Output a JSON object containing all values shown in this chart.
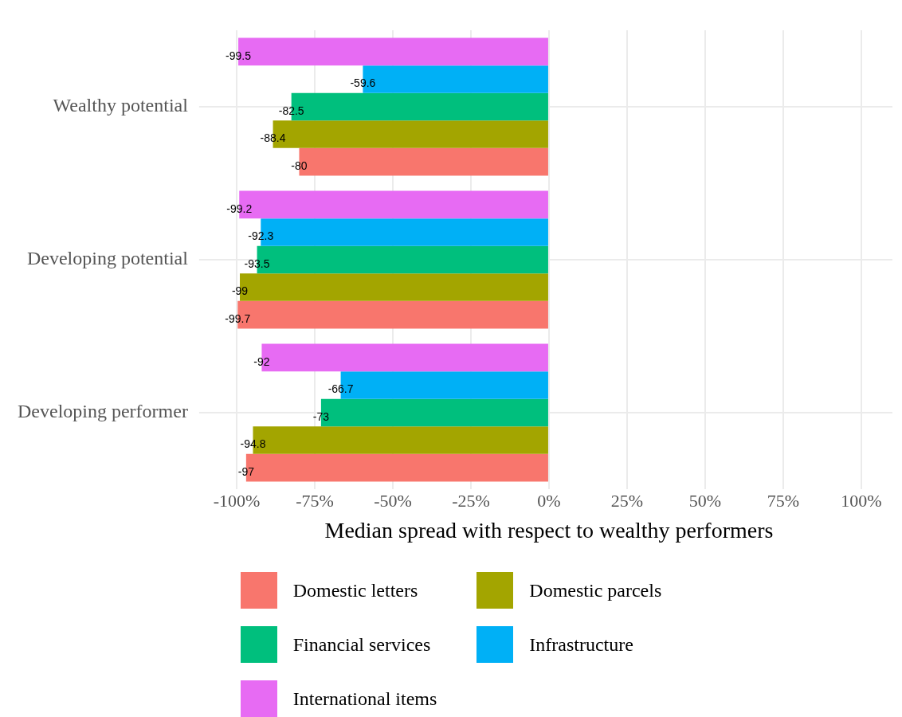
{
  "chart_data": {
    "type": "bar",
    "orientation": "horizontal",
    "categories": [
      "Wealthy potential",
      "Developing potential",
      "Developing performer"
    ],
    "series": [
      {
        "name": "Domestic letters",
        "color": "#f8766d",
        "values": [
          -80,
          -99.7,
          -97
        ]
      },
      {
        "name": "Domestic parcels",
        "color": "#a3a500",
        "values": [
          -88.4,
          -99,
          -94.8
        ]
      },
      {
        "name": "Financial services",
        "color": "#00bf7d",
        "values": [
          -82.5,
          -93.5,
          -73
        ]
      },
      {
        "name": "Infrastructure",
        "color": "#00b0f6",
        "values": [
          -59.6,
          -92.3,
          -66.7
        ]
      },
      {
        "name": "International items",
        "color": "#e76bf3",
        "values": [
          -99.5,
          -99.2,
          -92
        ]
      }
    ],
    "xlim": [
      -110,
      110
    ],
    "xticks": [
      {
        "value": -100,
        "label": "-100%"
      },
      {
        "value": -75,
        "label": "-75%"
      },
      {
        "value": -50,
        "label": "-50%"
      },
      {
        "value": -25,
        "label": "-25%"
      },
      {
        "value": 0,
        "label": "0%"
      },
      {
        "value": 25,
        "label": "25%"
      },
      {
        "value": 50,
        "label": "50%"
      },
      {
        "value": 75,
        "label": "75%"
      },
      {
        "value": 100,
        "label": "100%"
      }
    ],
    "xlabel": "Median spread with respect to wealthy performers",
    "grid": true,
    "legend": "bottom",
    "data_labels": true
  }
}
